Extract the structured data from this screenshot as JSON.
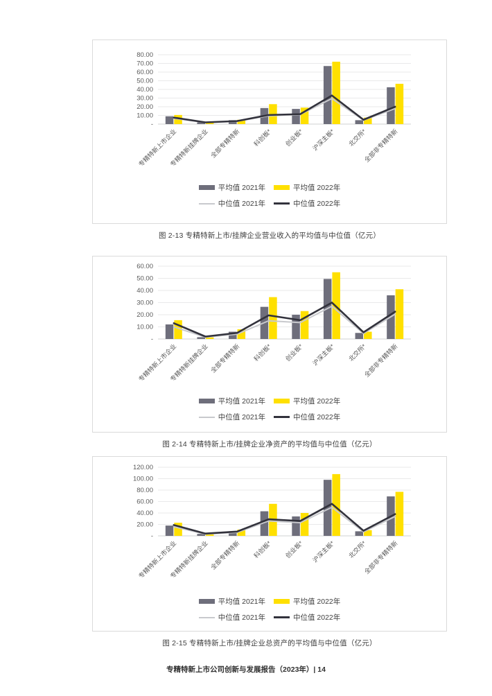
{
  "footer": {
    "text": "专精特新上市公司创新与发展报告（2023年）| 14"
  },
  "legend": {
    "avg2021": "平均值 2021年",
    "avg2022": "平均值 2022年",
    "med2021": "中位值 2021年",
    "med2022": "中位值 2022年"
  },
  "colors": {
    "avg2021": "#6e6e7b",
    "avg2022": "#ffe000",
    "med2021": "#c8c9cd",
    "med2022": "#32323c",
    "grid": "#e9e9ea",
    "baseline": "#cfd0d1",
    "axis_text": "#595959"
  },
  "chart_data": [
    {
      "type": "bar",
      "caption": "图 2-13 专精特新上市/挂牌企业营业收入的平均值与中位值（亿元）",
      "categories": [
        "专精特新上市企业",
        "专精特新挂牌企业",
        "全部专精特新",
        "科创板*",
        "创业板*",
        "沪深主板*",
        "北交所*",
        "全部非专精特新"
      ],
      "series": [
        {
          "name": "平均值 2021年",
          "type": "bar",
          "color_key": "avg2021",
          "values": [
            9.0,
            2.0,
            4.5,
            18.5,
            17.5,
            67.0,
            4.5,
            42.5
          ]
        },
        {
          "name": "平均值 2022年",
          "type": "bar",
          "color_key": "avg2022",
          "values": [
            10.5,
            1.8,
            5.0,
            23.0,
            19.0,
            72.0,
            7.5,
            46.5
          ]
        },
        {
          "name": "中位值 2021年",
          "type": "line",
          "color_key": "med2021",
          "values": [
            6.5,
            1.8,
            3.2,
            9.5,
            11.0,
            29.5,
            4.5,
            18.0
          ]
        },
        {
          "name": "中位值 2022年",
          "type": "line",
          "color_key": "med2022",
          "values": [
            7.5,
            2.0,
            3.5,
            10.5,
            11.5,
            33.0,
            5.0,
            20.0
          ]
        }
      ],
      "ylim": [
        0,
        80
      ],
      "ystep": 10,
      "zero_label": "-",
      "grid": true,
      "legend_position": "bottom"
    },
    {
      "type": "bar",
      "caption": "图 2-14 专精特新上市/挂牌企业净资产的平均值与中位值（亿元）",
      "categories": [
        "专精特新上市企业",
        "专精特新挂牌企业",
        "全部专精特新",
        "科创板*",
        "创业板*",
        "沪深主板*",
        "北交所*",
        "全部非专精特新"
      ],
      "series": [
        {
          "name": "平均值 2021年",
          "type": "bar",
          "color_key": "avg2021",
          "values": [
            12.0,
            1.5,
            6.0,
            26.5,
            20.0,
            49.5,
            5.0,
            36.0
          ]
        },
        {
          "name": "平均值 2022年",
          "type": "bar",
          "color_key": "avg2022",
          "values": [
            15.5,
            1.3,
            8.0,
            34.5,
            23.0,
            55.0,
            6.0,
            41.0
          ]
        },
        {
          "name": "中位值 2021年",
          "type": "line",
          "color_key": "med2021",
          "values": [
            10.0,
            1.5,
            4.0,
            15.0,
            13.5,
            27.0,
            4.5,
            20.5
          ]
        },
        {
          "name": "中位值 2022年",
          "type": "line",
          "color_key": "med2022",
          "values": [
            13.0,
            2.0,
            5.0,
            19.5,
            15.5,
            30.0,
            5.5,
            22.5
          ]
        }
      ],
      "ylim": [
        0,
        60
      ],
      "ystep": 10,
      "zero_label": "-",
      "grid": true,
      "legend_position": "bottom"
    },
    {
      "type": "bar",
      "caption": "图 2-15 专精特新上市/挂牌企业总资产的平均值与中位值（亿元）",
      "categories": [
        "专精特新上市企业",
        "专精特新挂牌企业",
        "全部专精特新",
        "科创板*",
        "创业板*",
        "沪深主板*",
        "北交所*",
        "全部非专精特新"
      ],
      "series": [
        {
          "name": "平均值 2021年",
          "type": "bar",
          "color_key": "avg2021",
          "values": [
            18.0,
            3.5,
            8.0,
            43.0,
            34.0,
            98.0,
            8.0,
            69.0
          ]
        },
        {
          "name": "平均值 2022年",
          "type": "bar",
          "color_key": "avg2022",
          "values": [
            23.0,
            3.0,
            11.0,
            56.0,
            40.0,
            108.0,
            10.0,
            77.0
          ]
        },
        {
          "name": "中位值 2021年",
          "type": "line",
          "color_key": "med2021",
          "values": [
            16.0,
            3.0,
            6.0,
            26.0,
            23.0,
            50.0,
            7.0,
            34.0
          ]
        },
        {
          "name": "中位值 2022年",
          "type": "line",
          "color_key": "med2022",
          "values": [
            19.0,
            4.0,
            7.5,
            29.0,
            26.0,
            56.0,
            9.0,
            38.0
          ]
        }
      ],
      "ylim": [
        0,
        120
      ],
      "ystep": 20,
      "zero_label": "-",
      "grid": true,
      "legend_position": "bottom"
    }
  ]
}
